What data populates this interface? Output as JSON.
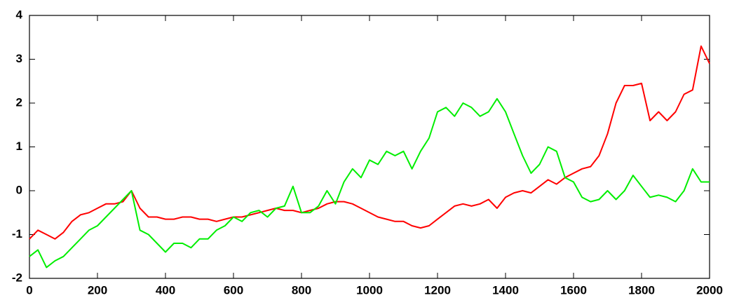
{
  "chart_data": {
    "type": "line",
    "x": [
      0,
      25,
      50,
      75,
      100,
      125,
      150,
      175,
      200,
      225,
      250,
      275,
      300,
      325,
      350,
      375,
      400,
      425,
      450,
      475,
      500,
      525,
      550,
      575,
      600,
      625,
      650,
      675,
      700,
      725,
      750,
      775,
      800,
      825,
      850,
      875,
      900,
      925,
      950,
      975,
      1000,
      1025,
      1050,
      1075,
      1100,
      1125,
      1150,
      1175,
      1200,
      1225,
      1250,
      1275,
      1300,
      1325,
      1350,
      1375,
      1400,
      1425,
      1450,
      1475,
      1500,
      1525,
      1550,
      1575,
      1600,
      1625,
      1650,
      1675,
      1700,
      1725,
      1750,
      1775,
      1800,
      1825,
      1850,
      1875,
      1900,
      1925,
      1950,
      1975,
      2000
    ],
    "series": [
      {
        "color": "#ff0000",
        "values": [
          -1.1,
          -0.9,
          -1.0,
          -1.1,
          -0.95,
          -0.7,
          -0.55,
          -0.5,
          -0.4,
          -0.3,
          -0.3,
          -0.25,
          0.0,
          -0.4,
          -0.6,
          -0.6,
          -0.65,
          -0.65,
          -0.6,
          -0.6,
          -0.65,
          -0.65,
          -0.7,
          -0.65,
          -0.6,
          -0.6,
          -0.55,
          -0.5,
          -0.45,
          -0.4,
          -0.45,
          -0.45,
          -0.5,
          -0.45,
          -0.4,
          -0.3,
          -0.25,
          -0.25,
          -0.3,
          -0.4,
          -0.5,
          -0.6,
          -0.65,
          -0.7,
          -0.7,
          -0.8,
          -0.85,
          -0.8,
          -0.65,
          -0.5,
          -0.35,
          -0.3,
          -0.35,
          -0.3,
          -0.2,
          -0.4,
          -0.15,
          -0.05,
          0.0,
          -0.05,
          0.1,
          0.25,
          0.15,
          0.3,
          0.4,
          0.5,
          0.55,
          0.8,
          1.3,
          2.0,
          2.4,
          2.4,
          2.45,
          1.6,
          1.8,
          1.6,
          1.8,
          2.2,
          2.3,
          3.3,
          2.9
        ]
      },
      {
        "color": "#00ee00",
        "values": [
          -1.5,
          -1.35,
          -1.75,
          -1.6,
          -1.5,
          -1.3,
          -1.1,
          -0.9,
          -0.8,
          -0.6,
          -0.4,
          -0.2,
          0.0,
          -0.9,
          -1.0,
          -1.2,
          -1.4,
          -1.2,
          -1.2,
          -1.3,
          -1.1,
          -1.1,
          -0.9,
          -0.8,
          -0.6,
          -0.7,
          -0.5,
          -0.45,
          -0.6,
          -0.4,
          -0.35,
          0.1,
          -0.5,
          -0.5,
          -0.35,
          0.0,
          -0.3,
          0.2,
          0.5,
          0.3,
          0.7,
          0.6,
          0.9,
          0.8,
          0.9,
          0.5,
          0.9,
          1.2,
          1.8,
          1.9,
          1.7,
          2.0,
          1.9,
          1.7,
          1.8,
          2.1,
          1.8,
          1.3,
          0.8,
          0.4,
          0.6,
          1.0,
          0.9,
          0.3,
          0.2,
          -0.15,
          -0.25,
          -0.2,
          0.0,
          -0.2,
          0.0,
          0.35,
          0.1,
          -0.15,
          -0.1,
          -0.15,
          -0.25,
          0.0,
          0.5,
          0.2,
          0.2
        ]
      }
    ],
    "xlim": [
      0,
      2000
    ],
    "xticks": [
      0,
      200,
      400,
      600,
      800,
      1000,
      1200,
      1400,
      1600,
      1800,
      2000
    ],
    "ylim": [
      -2,
      4
    ],
    "yticks": [
      -2,
      -1,
      0,
      1,
      2,
      3,
      4
    ]
  }
}
